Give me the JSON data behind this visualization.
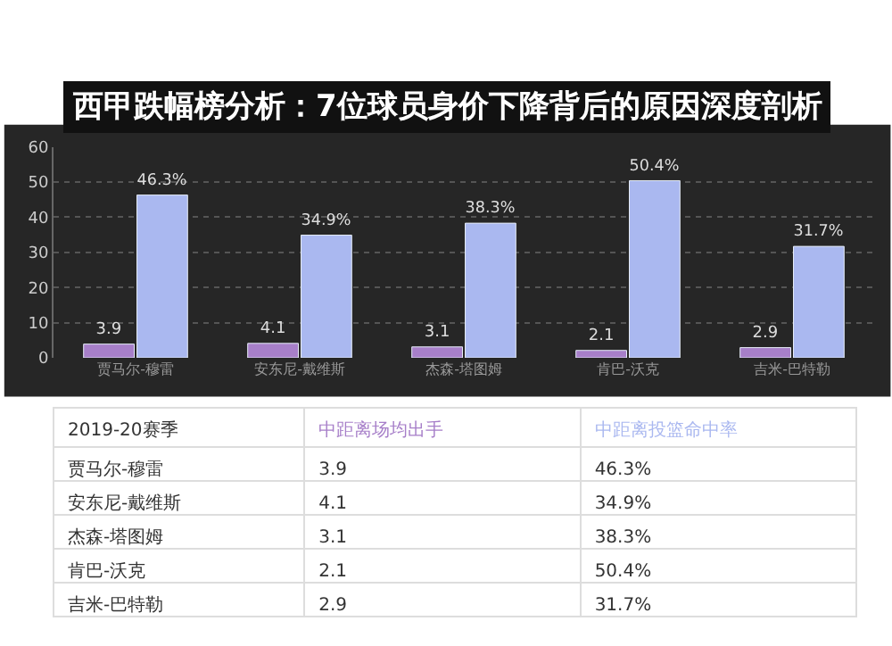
{
  "chart_data": {
    "type": "bar",
    "title": "西甲跌幅榜分析：7位球员身价下降背后的原因深度剖析",
    "legend_title": "2019-20赛季",
    "categories": [
      "贾马尔-穆雷",
      "安东尼-戴维斯",
      "杰森-塔图姆",
      "肯巴-沃克",
      "吉米-巴特勒"
    ],
    "series": [
      {
        "name": "中距离场均出手",
        "color": "#a77fc9",
        "values": [
          3.9,
          4.1,
          3.1,
          2.1,
          2.9
        ],
        "value_labels": [
          "3.9",
          "4.1",
          "3.1",
          "2.1",
          "2.9"
        ]
      },
      {
        "name": "中距离投篮命中率",
        "color": "#aab8f0",
        "values": [
          46.3,
          34.9,
          38.3,
          50.4,
          31.7
        ],
        "value_labels": [
          "46.3%",
          "34.9%",
          "38.3%",
          "50.4%",
          "31.7%"
        ]
      }
    ],
    "ylim": [
      0,
      60
    ],
    "yticks": [
      0,
      10,
      20,
      30,
      40,
      50,
      60
    ],
    "grid": true,
    "data_labels": true
  }
}
